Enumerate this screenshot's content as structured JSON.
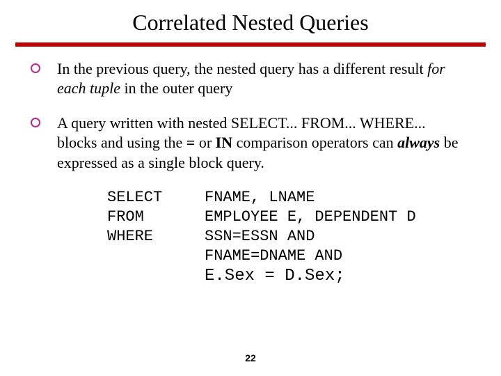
{
  "title": "Correlated Nested Queries",
  "rule_color": "#c00000",
  "bullet_border_color": "#b22c8a",
  "bullets": [
    {
      "pre": "In the previous query, the nested query has a different result ",
      "em": "for each tuple",
      "post": "  in the outer query"
    },
    {
      "pre": "A query written with nested SELECT... FROM... WHERE... blocks and using the ",
      "b1": "=",
      "mid1": " or ",
      "b2": "IN",
      "mid2": " comparison operators can ",
      "b3": "always",
      "post": "  be expressed as a single block query."
    }
  ],
  "sql": {
    "rows": [
      {
        "kw": "SELECT",
        "val": "FNAME, LNAME"
      },
      {
        "kw": "FROM",
        "val": "EMPLOYEE E, DEPENDENT D"
      },
      {
        "kw": "WHERE",
        "val": "SSN=ESSN AND"
      },
      {
        "kw": "",
        "val": "FNAME=DNAME AND"
      }
    ],
    "last": "E.Sex = D.Sex;"
  },
  "page_number": "22"
}
